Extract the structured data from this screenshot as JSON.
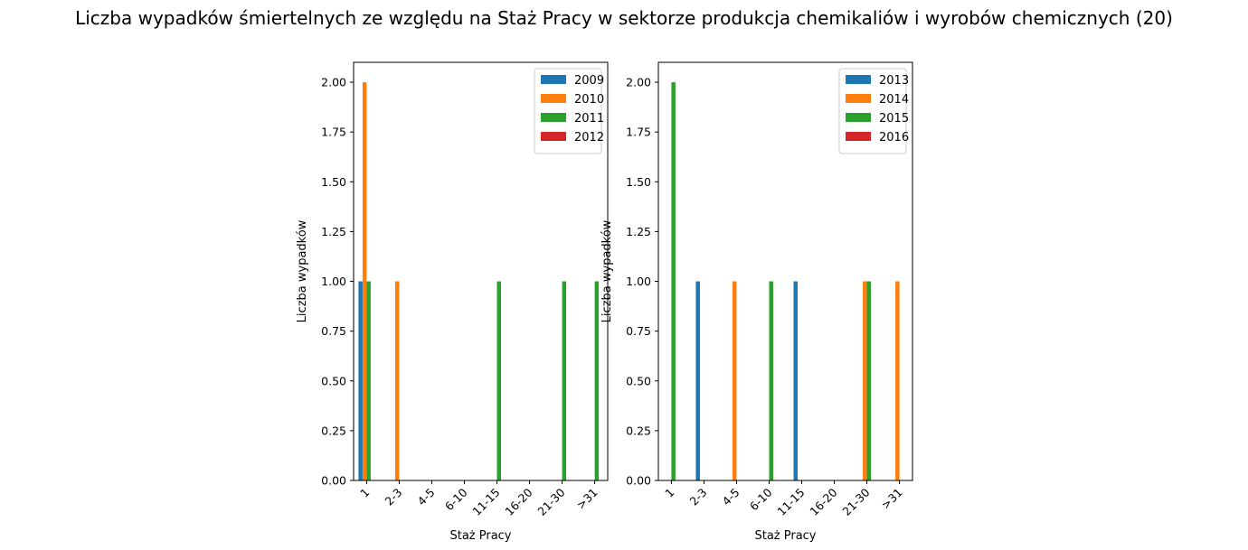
{
  "figure": {
    "title": "Liczba wypadków śmiertelnych ze względu na Staż Pracy w sektorze produkcja chemikaliów i wyrobów  chemicznych (20)"
  },
  "chart_data": [
    {
      "type": "bar",
      "title": "",
      "xlabel": "Staż Pracy",
      "ylabel": "Liczba wypadków",
      "ylim": [
        0,
        2.1
      ],
      "yticks": [
        "0.00",
        "0.25",
        "0.50",
        "0.75",
        "1.00",
        "1.25",
        "1.50",
        "1.75",
        "2.00"
      ],
      "categories": [
        "1",
        "2-3",
        "4-5",
        "6-10",
        "11-15",
        "16-20",
        "21-30",
        ">31"
      ],
      "legend_position": "top-right",
      "grid": false,
      "series": [
        {
          "name": "2009",
          "color": "#1f77b4",
          "values": [
            1,
            0,
            0,
            0,
            0,
            0,
            0,
            0
          ]
        },
        {
          "name": "2010",
          "color": "#ff7f0e",
          "values": [
            2,
            1,
            0,
            0,
            0,
            0,
            0,
            0
          ]
        },
        {
          "name": "2011",
          "color": "#2ca02c",
          "values": [
            1,
            0,
            0,
            0,
            1,
            0,
            1,
            1
          ]
        },
        {
          "name": "2012",
          "color": "#d62728",
          "values": [
            0,
            0,
            0,
            0,
            0,
            0,
            0,
            0
          ]
        }
      ]
    },
    {
      "type": "bar",
      "title": "",
      "xlabel": "Staż Pracy",
      "ylabel": "Liczba wypadków",
      "ylim": [
        0,
        2.1
      ],
      "yticks": [
        "0.00",
        "0.25",
        "0.50",
        "0.75",
        "1.00",
        "1.25",
        "1.50",
        "1.75",
        "2.00"
      ],
      "categories": [
        "1",
        "2-3",
        "4-5",
        "6-10",
        "11-15",
        "16-20",
        "21-30",
        ">31"
      ],
      "legend_position": "top-right",
      "grid": false,
      "series": [
        {
          "name": "2013",
          "color": "#1f77b4",
          "values": [
            0,
            1,
            0,
            0,
            1,
            0,
            0,
            0
          ]
        },
        {
          "name": "2014",
          "color": "#ff7f0e",
          "values": [
            0,
            0,
            1,
            0,
            0,
            0,
            1,
            1
          ]
        },
        {
          "name": "2015",
          "color": "#2ca02c",
          "values": [
            2,
            0,
            0,
            1,
            0,
            0,
            1,
            0
          ]
        },
        {
          "name": "2016",
          "color": "#d62728",
          "values": [
            0,
            0,
            0,
            0,
            0,
            0,
            0,
            0
          ]
        }
      ]
    }
  ]
}
